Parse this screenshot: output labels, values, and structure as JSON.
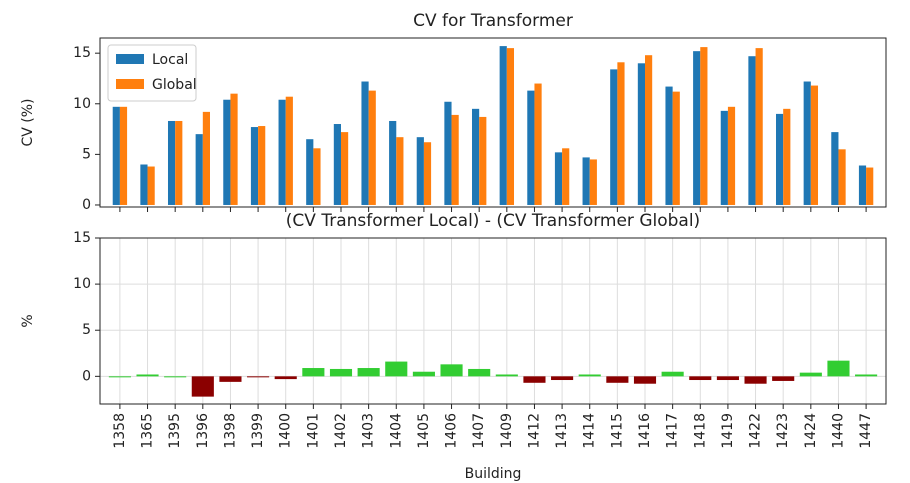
{
  "chart_data": [
    {
      "type": "grouped-bar",
      "title": "CV for Transformer",
      "ylabel": "CV (%)",
      "series": [
        {
          "name": "Local",
          "color": "#1f77b4",
          "values": [
            9.7,
            4.0,
            8.3,
            7.0,
            10.4,
            7.7,
            10.4,
            6.5,
            8.0,
            12.2,
            8.3,
            6.7,
            10.2,
            9.5,
            15.7,
            11.3,
            5.2,
            4.7,
            13.4,
            14.0,
            11.7,
            15.2,
            9.3,
            14.7,
            9.0,
            12.2,
            7.2,
            3.9
          ]
        },
        {
          "name": "Global",
          "color": "#ff7f0e",
          "values": [
            9.7,
            3.8,
            8.3,
            9.2,
            11.0,
            7.8,
            10.7,
            5.6,
            7.2,
            11.3,
            6.7,
            6.2,
            8.9,
            8.7,
            15.5,
            12.0,
            5.6,
            4.5,
            14.1,
            14.8,
            11.2,
            15.6,
            9.7,
            15.5,
            9.5,
            11.8,
            5.5,
            3.7
          ]
        }
      ],
      "ylim": [
        -0.2,
        16.5
      ],
      "yticks": [
        0,
        5,
        10,
        15
      ],
      "legend": "upper left"
    },
    {
      "type": "diverging-bar",
      "title": "(CV Transformer Local) - (CV Transformer Global)",
      "ylabel": "%",
      "xlabel": "Building",
      "categories": [
        "1358",
        "1365",
        "1395",
        "1396",
        "1398",
        "1399",
        "1400",
        "1401",
        "1402",
        "1403",
        "1404",
        "1405",
        "1406",
        "1407",
        "1409",
        "1412",
        "1413",
        "1414",
        "1415",
        "1416",
        "1417",
        "1418",
        "1419",
        "1422",
        "1423",
        "1424",
        "1440",
        "1447"
      ],
      "values": [
        0,
        0.2,
        0,
        -2.2,
        -0.6,
        -0.1,
        -0.3,
        0.9,
        0.8,
        0.9,
        1.6,
        0.5,
        1.3,
        0.8,
        0.2,
        -0.7,
        -0.4,
        0.2,
        -0.7,
        -0.8,
        0.5,
        -0.4,
        -0.4,
        -0.8,
        -0.5,
        0.4,
        1.7,
        0.2
      ],
      "positive_color": "#32cd32",
      "negative_color": "#8b0000",
      "ylim": [
        -3,
        15
      ],
      "yticks": [
        0,
        5,
        10,
        15
      ],
      "grid": true
    }
  ]
}
